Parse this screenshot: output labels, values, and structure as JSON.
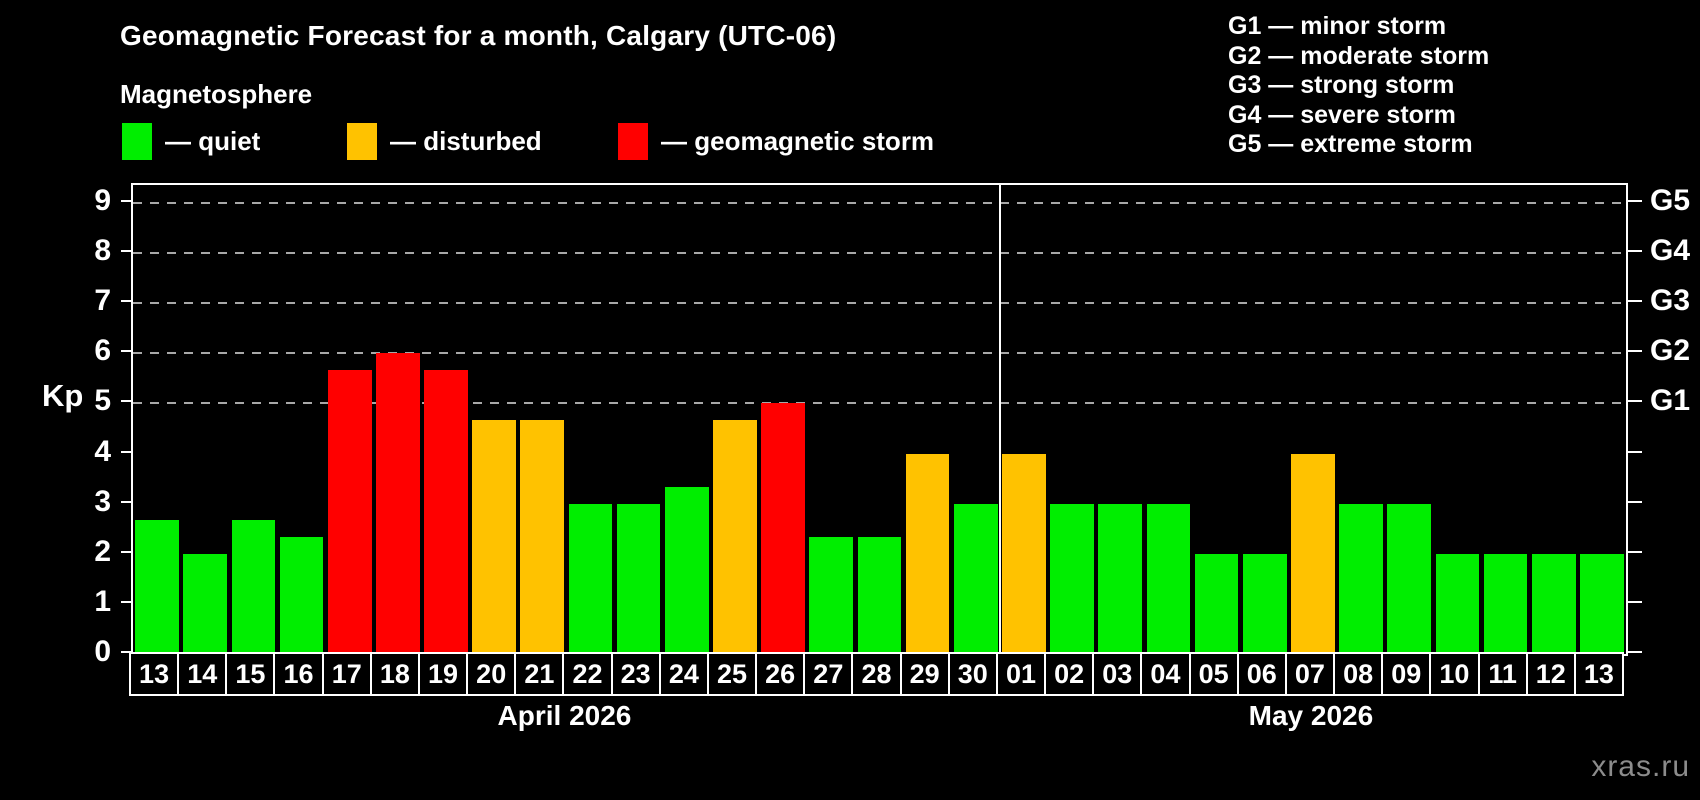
{
  "title": "Geomagnetic Forecast for a month, Calgary (UTC-06)",
  "subtitle": "Magnetosphere",
  "legend": {
    "items": [
      {
        "kind": "quiet",
        "label": "— quiet",
        "color": "#00ee00"
      },
      {
        "kind": "disturbed",
        "label": "— disturbed",
        "color": "#ffc200"
      },
      {
        "kind": "storm",
        "label": "— geomagnetic storm",
        "color": "#ff0000"
      }
    ]
  },
  "g_scale_legend": [
    "G1 — minor storm",
    "G2 — moderate storm",
    "G3 — strong storm",
    "G4 — severe storm",
    "G5 — extreme storm"
  ],
  "watermark": "xras.ru",
  "chart_data": {
    "type": "bar",
    "ylabel": "Kp",
    "ylim": [
      0,
      9.36
    ],
    "yticks": [
      0,
      1,
      2,
      3,
      4,
      5,
      6,
      7,
      8,
      9
    ],
    "gridline_kp": [
      5,
      6,
      7,
      8,
      9
    ],
    "grid": "dashed horizontal at G-storm levels only",
    "legend_position": "top-left",
    "right_axis_labels": [
      {
        "kp": 5,
        "label": "G1"
      },
      {
        "kp": 6,
        "label": "G2"
      },
      {
        "kp": 7,
        "label": "G3"
      },
      {
        "kp": 8,
        "label": "G4"
      },
      {
        "kp": 9,
        "label": "G5"
      }
    ],
    "months": [
      {
        "label": "April 2026",
        "days": 18
      },
      {
        "label": "May 2026",
        "days": 13
      }
    ],
    "days": [
      {
        "date": "13",
        "kp": 2.67,
        "status": "quiet"
      },
      {
        "date": "14",
        "kp": 2,
        "status": "quiet"
      },
      {
        "date": "15",
        "kp": 2.67,
        "status": "quiet"
      },
      {
        "date": "16",
        "kp": 2.33,
        "status": "quiet"
      },
      {
        "date": "17",
        "kp": 5.67,
        "status": "storm"
      },
      {
        "date": "18",
        "kp": 6,
        "status": "storm"
      },
      {
        "date": "19",
        "kp": 5.67,
        "status": "storm"
      },
      {
        "date": "20",
        "kp": 4.67,
        "status": "disturbed"
      },
      {
        "date": "21",
        "kp": 4.67,
        "status": "disturbed"
      },
      {
        "date": "22",
        "kp": 3,
        "status": "quiet"
      },
      {
        "date": "23",
        "kp": 3,
        "status": "quiet"
      },
      {
        "date": "24",
        "kp": 3.33,
        "status": "quiet"
      },
      {
        "date": "25",
        "kp": 4.67,
        "status": "disturbed"
      },
      {
        "date": "26",
        "kp": 5,
        "status": "storm"
      },
      {
        "date": "27",
        "kp": 2.33,
        "status": "quiet"
      },
      {
        "date": "28",
        "kp": 2.33,
        "status": "quiet"
      },
      {
        "date": "29",
        "kp": 4,
        "status": "disturbed"
      },
      {
        "date": "30",
        "kp": 3,
        "status": "quiet"
      },
      {
        "date": "01",
        "kp": 4,
        "status": "disturbed"
      },
      {
        "date": "02",
        "kp": 3,
        "status": "quiet"
      },
      {
        "date": "03",
        "kp": 3,
        "status": "quiet"
      },
      {
        "date": "04",
        "kp": 3,
        "status": "quiet"
      },
      {
        "date": "05",
        "kp": 2,
        "status": "quiet"
      },
      {
        "date": "06",
        "kp": 2,
        "status": "quiet"
      },
      {
        "date": "07",
        "kp": 4,
        "status": "disturbed"
      },
      {
        "date": "08",
        "kp": 3,
        "status": "quiet"
      },
      {
        "date": "09",
        "kp": 3,
        "status": "quiet"
      },
      {
        "date": "10",
        "kp": 2,
        "status": "quiet"
      },
      {
        "date": "11",
        "kp": 2,
        "status": "quiet"
      },
      {
        "date": "12",
        "kp": 2,
        "status": "quiet"
      },
      {
        "date": "13",
        "kp": 2,
        "status": "quiet"
      }
    ]
  }
}
